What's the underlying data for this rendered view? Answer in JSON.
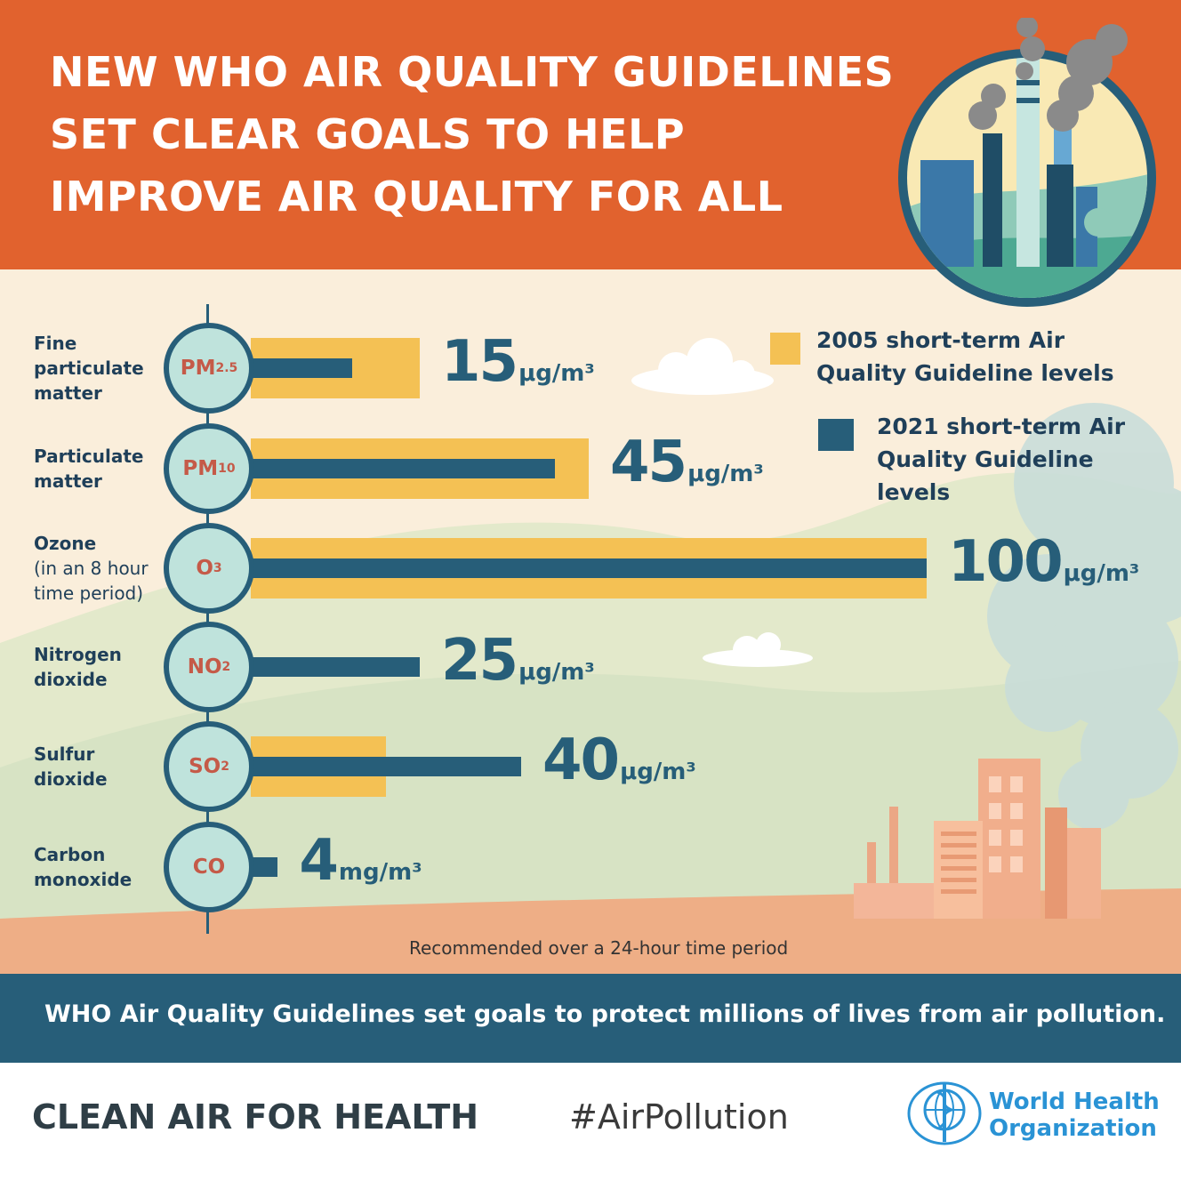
{
  "header": {
    "title_lines": [
      "NEW WHO AIR QUALITY GUIDELINES",
      "SET CLEAR GOALS TO HELP",
      "IMPROVE AIR QUALITY FOR ALL"
    ]
  },
  "legend": {
    "item_2005": "2005 short-term Air Quality Guideline levels",
    "item_2005_lines": [
      "2005 short-term Air",
      "Quality Guideline levels"
    ],
    "item_2021": "2021 short-term Air Quality Guideline levels",
    "item_2021_lines": [
      "2021 short-term Air",
      "Quality Guideline",
      "levels"
    ]
  },
  "chart_data": {
    "type": "bar",
    "orientation": "horizontal",
    "categories": [
      "Fine particulate matter",
      "Particulate matter",
      "Ozone",
      "Nitrogen dioxide",
      "Sulfur dioxide",
      "Carbon monoxide"
    ],
    "labels": [
      {
        "main": [
          "Fine",
          "particulate",
          "matter"
        ],
        "sub": []
      },
      {
        "main": [
          "Particulate",
          "matter"
        ],
        "sub": []
      },
      {
        "main": [
          "Ozone"
        ],
        "sub": [
          "(in an 8 hour",
          "time period)"
        ]
      },
      {
        "main": [
          "Nitrogen",
          "dioxide"
        ],
        "sub": []
      },
      {
        "main": [
          "Sulfur",
          "dioxide"
        ],
        "sub": []
      },
      {
        "main": [
          "Carbon",
          "monoxide"
        ],
        "sub": []
      }
    ],
    "pollutants": [
      {
        "base": "PM",
        "sub": "2.5"
      },
      {
        "base": "PM",
        "sub": "10"
      },
      {
        "base": "O",
        "sub": "3"
      },
      {
        "base": "NO",
        "sub": "2"
      },
      {
        "base": "SO",
        "sub": "2"
      },
      {
        "base": "CO",
        "sub": ""
      }
    ],
    "series": [
      {
        "name": "2005 short-term Air Quality Guideline levels",
        "values": [
          25,
          50,
          100,
          null,
          20,
          null
        ],
        "color": "#f4c154"
      },
      {
        "name": "2021 short-term Air Quality Guideline levels",
        "values": [
          15,
          45,
          100,
          25,
          40,
          4
        ],
        "color": "#275e79"
      }
    ],
    "value_labels": [
      {
        "num": "15",
        "unit": "μg/m³"
      },
      {
        "num": "45",
        "unit": "μg/m³"
      },
      {
        "num": "100",
        "unit": "μg/m³"
      },
      {
        "num": "25",
        "unit": "μg/m³"
      },
      {
        "num": "40",
        "unit": "μg/m³"
      },
      {
        "num": "4",
        "unit": "mg/m³"
      }
    ],
    "footnote": "Recommended over a 24-hour time period"
  },
  "banner": {
    "text": "WHO Air Quality Guidelines set goals to protect millions of lives from air pollution."
  },
  "footer": {
    "left": "CLEAN AIR FOR HEALTH",
    "hashtag": "#AirPollution",
    "org_lines": [
      "World Health",
      "Organization"
    ]
  },
  "colors": {
    "header_bg": "#e1622e",
    "chart_bg": "#faeedb",
    "bar_2005": "#f4c154",
    "bar_2021": "#275e79",
    "banner_bg": "#275e79",
    "who_blue": "#2a93d5"
  }
}
